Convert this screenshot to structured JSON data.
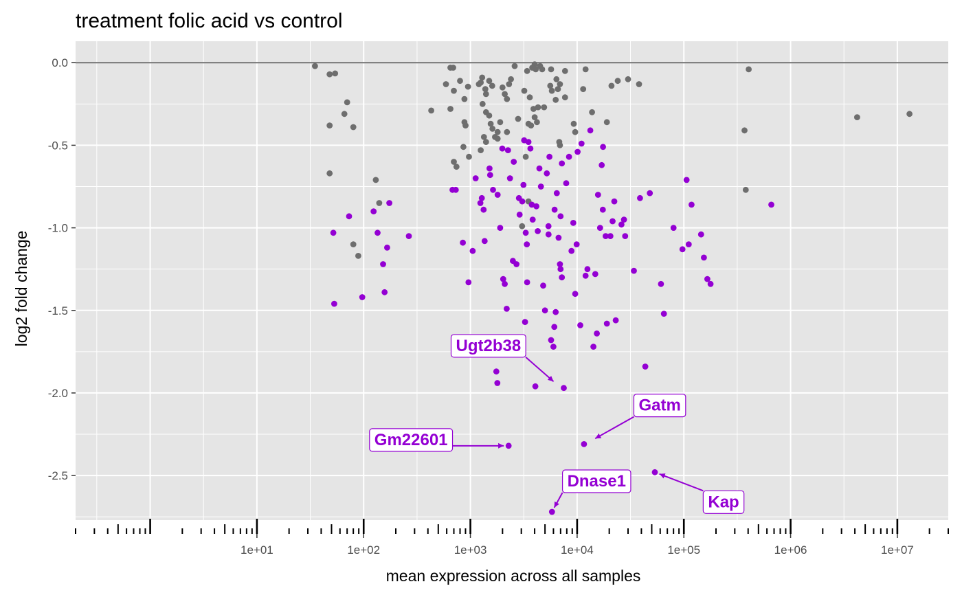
{
  "chart_data": {
    "type": "scatter",
    "title": "treatment folic acid vs control",
    "xlabel": "mean expression across all samples",
    "ylabel": "log2 fold change",
    "x_scale": "log10",
    "xlim": [
      0.2,
      30000000
    ],
    "ylim": [
      -2.77,
      0.13
    ],
    "x_ticks": [
      {
        "value": 10,
        "label": "1e+01"
      },
      {
        "value": 100,
        "label": "1e+02"
      },
      {
        "value": 1000,
        "label": "1e+03"
      },
      {
        "value": 10000,
        "label": "1e+04"
      },
      {
        "value": 100000,
        "label": "1e+05"
      },
      {
        "value": 1000000,
        "label": "1e+06"
      },
      {
        "value": 10000000,
        "label": "1e+07"
      }
    ],
    "y_ticks": [
      {
        "value": 0,
        "label": "0.0"
      },
      {
        "value": -0.5,
        "label": "-0.5"
      },
      {
        "value": -1,
        "label": "-1.0"
      },
      {
        "value": -1.5,
        "label": "-1.5"
      },
      {
        "value": -2,
        "label": "-2.0"
      },
      {
        "value": -2.5,
        "label": "-2.5"
      }
    ],
    "reference_line_y": 0,
    "grid": true,
    "rug": "bottom",
    "colors": {
      "significant": "#9400d3",
      "not_significant": "#6e6e6e",
      "panel": "#e5e5e5",
      "grid": "#ffffff",
      "reference": "#707070"
    },
    "series": [
      {
        "group": "not_significant",
        "points": [
          [
            35,
            -0.02
          ],
          [
            48,
            -0.07
          ],
          [
            54,
            -0.065
          ],
          [
            48,
            -0.38
          ],
          [
            70,
            -0.24
          ],
          [
            66,
            -0.31
          ],
          [
            80,
            -0.39
          ],
          [
            48,
            -0.67
          ],
          [
            130,
            -0.71
          ],
          [
            80,
            -1.1
          ],
          [
            89,
            -1.17
          ],
          [
            140,
            -0.85
          ],
          [
            430,
            -0.29
          ],
          [
            650,
            -0.03
          ],
          [
            690,
            -0.03
          ],
          [
            590,
            -0.13
          ],
          [
            700,
            -0.17
          ],
          [
            650,
            -0.28
          ],
          [
            800,
            -0.11
          ],
          [
            880,
            -0.22
          ],
          [
            950,
            -0.145
          ],
          [
            880,
            -0.36
          ],
          [
            900,
            -0.38
          ],
          [
            860,
            -0.51
          ],
          [
            970,
            -0.57
          ],
          [
            700,
            -0.6
          ],
          [
            740,
            -0.63
          ],
          [
            1200,
            -0.13
          ],
          [
            1250,
            -0.12
          ],
          [
            1290,
            -0.09
          ],
          [
            1380,
            -0.16
          ],
          [
            1400,
            -0.19
          ],
          [
            1300,
            -0.25
          ],
          [
            1400,
            -0.3
          ],
          [
            1500,
            -0.32
          ],
          [
            1550,
            -0.37
          ],
          [
            1610,
            -0.4
          ],
          [
            1700,
            -0.45
          ],
          [
            1800,
            -0.42
          ],
          [
            1900,
            -0.36
          ],
          [
            2000,
            -0.15
          ],
          [
            2100,
            -0.19
          ],
          [
            2200,
            -0.22
          ],
          [
            2300,
            -0.13
          ],
          [
            1500,
            -0.11
          ],
          [
            1600,
            -0.14
          ],
          [
            1340,
            -0.45
          ],
          [
            1250,
            -0.53
          ],
          [
            1400,
            -0.48
          ],
          [
            1800,
            -0.46
          ],
          [
            2200,
            -0.42
          ],
          [
            2600,
            -0.02
          ],
          [
            2800,
            -0.34
          ],
          [
            3200,
            -0.17
          ],
          [
            3400,
            -0.05
          ],
          [
            3500,
            -0.37
          ],
          [
            3700,
            -0.38
          ],
          [
            3600,
            -0.21
          ],
          [
            3300,
            -0.57
          ],
          [
            4000,
            -0.01
          ],
          [
            3800,
            -0.03
          ],
          [
            4500,
            -0.02
          ],
          [
            4700,
            -0.04
          ],
          [
            4100,
            -0.04
          ],
          [
            3900,
            -0.28
          ],
          [
            4200,
            -0.36
          ],
          [
            4300,
            -0.27
          ],
          [
            4000,
            -0.33
          ],
          [
            4900,
            -0.27
          ],
          [
            5700,
            -0.04
          ],
          [
            6400,
            -0.1
          ],
          [
            6900,
            -0.13
          ],
          [
            5600,
            -0.14
          ],
          [
            5800,
            -0.17
          ],
          [
            6600,
            -0.16
          ],
          [
            6300,
            -0.225
          ],
          [
            6900,
            -0.5
          ],
          [
            7700,
            -0.21
          ],
          [
            6800,
            -0.48
          ],
          [
            12000,
            -0.04
          ],
          [
            11400,
            -0.16
          ],
          [
            13800,
            -0.3
          ],
          [
            9300,
            -0.37
          ],
          [
            9600,
            -0.42
          ],
          [
            19000,
            -0.36
          ],
          [
            21000,
            -0.14
          ],
          [
            24000,
            -0.11
          ],
          [
            30000,
            -0.1
          ],
          [
            38000,
            -0.13
          ],
          [
            7700,
            -0.05
          ],
          [
            2400,
            -0.1
          ],
          [
            370000,
            -0.41
          ],
          [
            380000,
            -0.77
          ],
          [
            405000,
            -0.04
          ],
          [
            4200000,
            -0.33
          ],
          [
            13000000,
            -0.31
          ],
          [
            3050,
            -0.99
          ],
          [
            3500,
            -0.84
          ]
        ]
      },
      {
        "group": "significant",
        "points": [
          [
            52,
            -1.03
          ],
          [
            73,
            -0.93
          ],
          [
            53,
            -1.46
          ],
          [
            97,
            -1.42
          ],
          [
            124,
            -0.9
          ],
          [
            135,
            -1.03
          ],
          [
            152,
            -1.22
          ],
          [
            157,
            -1.39
          ],
          [
            166,
            -1.12
          ],
          [
            174,
            -0.85
          ],
          [
            265,
            -1.05
          ],
          [
            680,
            -0.77
          ],
          [
            730,
            -0.77
          ],
          [
            850,
            -1.09
          ],
          [
            960,
            -1.33
          ],
          [
            1050,
            -1.14
          ],
          [
            1120,
            -0.7
          ],
          [
            1240,
            -0.85
          ],
          [
            1280,
            -0.82
          ],
          [
            1330,
            -0.89
          ],
          [
            1360,
            -1.08
          ],
          [
            1510,
            -0.64
          ],
          [
            1530,
            -0.68
          ],
          [
            1630,
            -0.77
          ],
          [
            1750,
            -1.87
          ],
          [
            1790,
            -1.94
          ],
          [
            1800,
            -0.8
          ],
          [
            1900,
            -1.0
          ],
          [
            1990,
            -0.52
          ],
          [
            2030,
            -1.31
          ],
          [
            2100,
            -1.34
          ],
          [
            2190,
            -1.49
          ],
          [
            2280,
            -2.32
          ],
          [
            2350,
            -0.7
          ],
          [
            2500,
            -1.2
          ],
          [
            2550,
            -0.6
          ],
          [
            2700,
            -1.22
          ],
          [
            2850,
            -0.82
          ],
          [
            2890,
            -0.92
          ],
          [
            3060,
            -0.84
          ],
          [
            3140,
            -0.74
          ],
          [
            3190,
            -0.47
          ],
          [
            3250,
            -1.57
          ],
          [
            3300,
            -1.03
          ],
          [
            3380,
            -1.1
          ],
          [
            3400,
            -1.33
          ],
          [
            3500,
            -0.48
          ],
          [
            3650,
            -0.52
          ],
          [
            3760,
            -0.86
          ],
          [
            3830,
            -0.95
          ],
          [
            4060,
            -1.96
          ],
          [
            4150,
            -0.87
          ],
          [
            4280,
            -1.02
          ],
          [
            4430,
            -0.64
          ],
          [
            4580,
            -0.75
          ],
          [
            4810,
            -1.35
          ],
          [
            5000,
            -1.5
          ],
          [
            5200,
            -0.67
          ],
          [
            5390,
            -0.99
          ],
          [
            5400,
            -1.04
          ],
          [
            5500,
            -0.57
          ],
          [
            5700,
            -1.68
          ],
          [
            6000,
            -1.72
          ],
          [
            6110,
            -1.6
          ],
          [
            6150,
            -0.89
          ],
          [
            6300,
            -1.51
          ],
          [
            6450,
            -0.79
          ],
          [
            6700,
            -1.06
          ],
          [
            6900,
            -1.22
          ],
          [
            7000,
            -1.25
          ],
          [
            7200,
            -1.3
          ],
          [
            7000,
            -0.93
          ],
          [
            7200,
            -0.61
          ],
          [
            7500,
            -1.97
          ],
          [
            7900,
            -0.73
          ],
          [
            8400,
            -0.57
          ],
          [
            8850,
            -1.14
          ],
          [
            9200,
            -0.97
          ],
          [
            9600,
            -1.4
          ],
          [
            9900,
            -1.1
          ],
          [
            10100,
            -0.54
          ],
          [
            10700,
            -1.59
          ],
          [
            11000,
            -0.49
          ],
          [
            11600,
            -2.31
          ],
          [
            12000,
            -1.29
          ],
          [
            12500,
            -1.25
          ],
          [
            13300,
            -0.41
          ],
          [
            14200,
            -1.72
          ],
          [
            14800,
            -1.28
          ],
          [
            15300,
            -1.64
          ],
          [
            15700,
            -0.8
          ],
          [
            16400,
            -1.0
          ],
          [
            17000,
            -0.62
          ],
          [
            17400,
            -0.89
          ],
          [
            17500,
            -0.51
          ],
          [
            18500,
            -1.05
          ],
          [
            19000,
            -1.58
          ],
          [
            20500,
            -1.05
          ],
          [
            21500,
            -0.96
          ],
          [
            22300,
            -0.84
          ],
          [
            23000,
            -1.56
          ],
          [
            26000,
            -0.98
          ],
          [
            27500,
            -0.95
          ],
          [
            28200,
            -1.05
          ],
          [
            34000,
            -1.26
          ],
          [
            38800,
            -0.82
          ],
          [
            43500,
            -1.84
          ],
          [
            48000,
            -0.79
          ],
          [
            53500,
            -2.48
          ],
          [
            61000,
            -1.34
          ],
          [
            65000,
            -1.52
          ],
          [
            80000,
            -1.0
          ],
          [
            97000,
            -1.13
          ],
          [
            106000,
            -0.71
          ],
          [
            111000,
            -1.1
          ],
          [
            118000,
            -0.86
          ],
          [
            145000,
            -1.04
          ],
          [
            154000,
            -1.18
          ],
          [
            166000,
            -1.31
          ],
          [
            178000,
            -1.34
          ],
          [
            660000,
            -0.86
          ],
          [
            2250,
            -0.53
          ],
          [
            5810,
            -2.72
          ]
        ]
      }
    ],
    "annotations": [
      {
        "label": "Ugt2b38",
        "target": [
          6500,
          -1.95
        ]
      },
      {
        "label": "Gatm",
        "target": [
          13500,
          -2.29
        ]
      },
      {
        "label": "Gm22601",
        "target": [
          2280,
          -2.32
        ]
      },
      {
        "label": "Dnase1",
        "target": [
          5810,
          -2.72
        ]
      },
      {
        "label": "Kap",
        "target": [
          53500,
          -2.48
        ]
      }
    ]
  }
}
